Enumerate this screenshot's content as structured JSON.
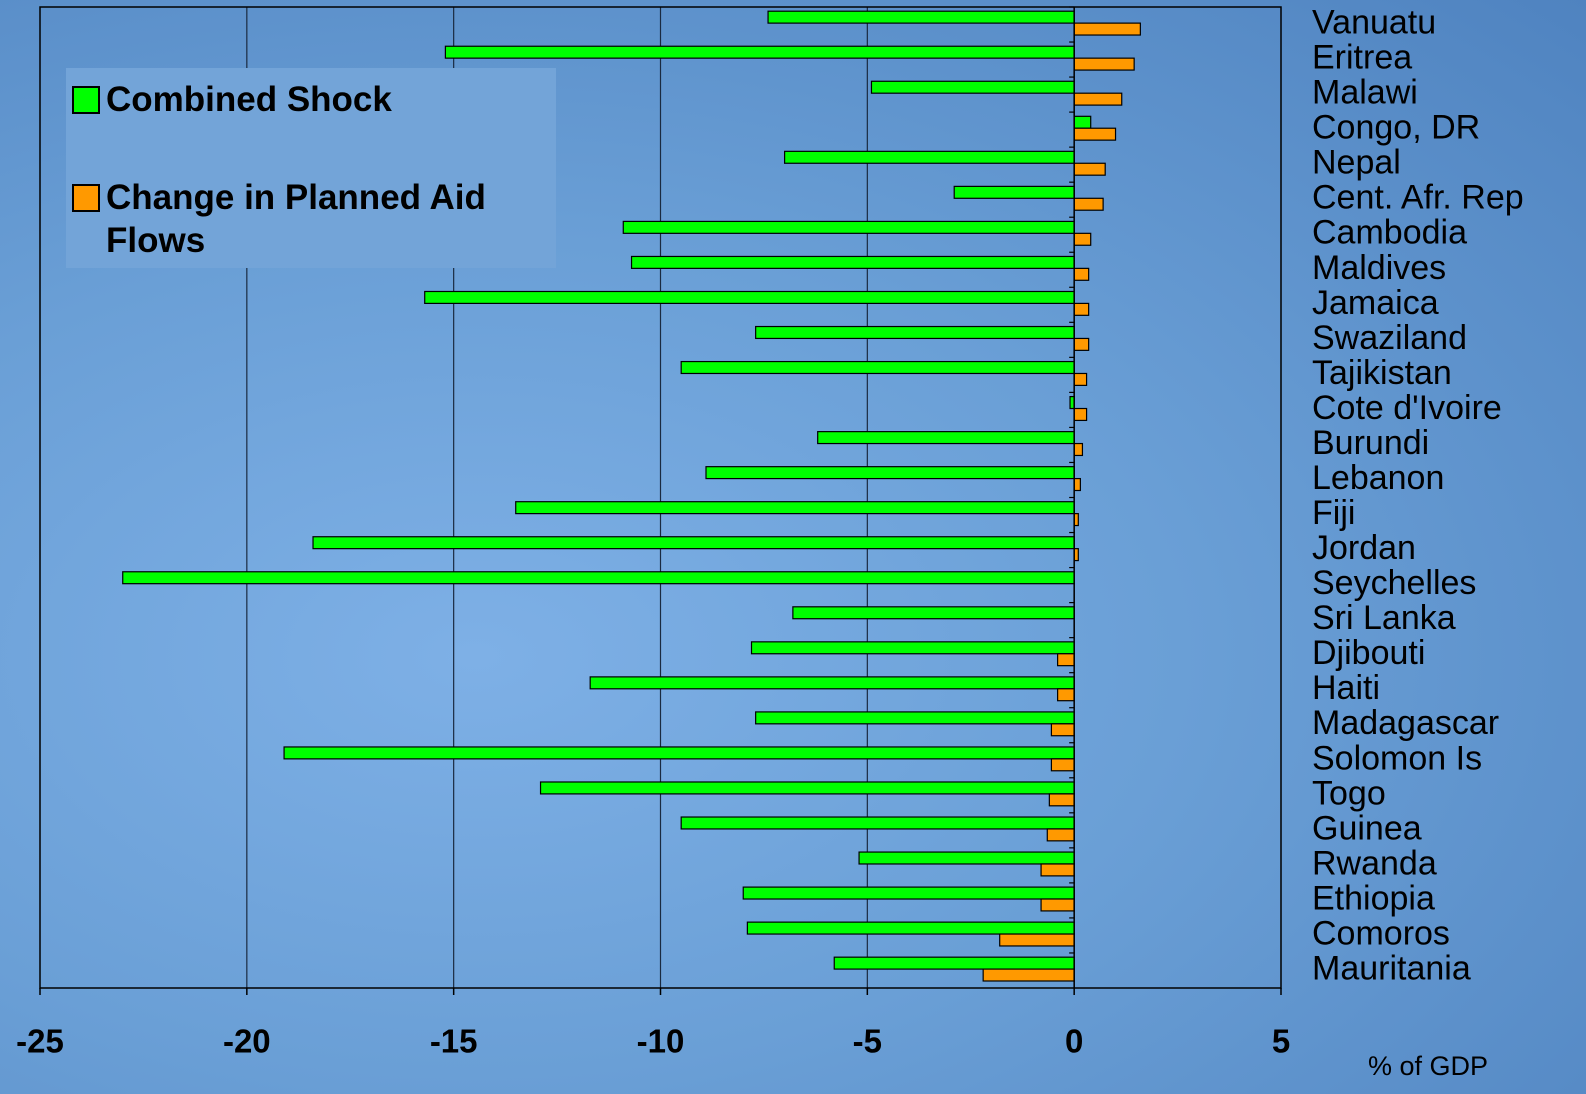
{
  "chart_data": {
    "type": "bar",
    "orientation": "horizontal",
    "categories": [
      "Vanuatu",
      "Eritrea",
      "Malawi",
      "Congo, DR",
      "Nepal",
      "Cent. Afr. Rep",
      "Cambodia",
      "Maldives",
      "Jamaica",
      "Swaziland",
      "Tajikistan",
      "Cote d'Ivoire",
      "Burundi",
      "Lebanon",
      "Fiji",
      "Jordan",
      "Seychelles",
      "Sri Lanka",
      "Djibouti",
      "Haiti",
      "Madagascar",
      "Solomon Is",
      "Togo",
      "Guinea",
      "Rwanda",
      "Ethiopia",
      "Comoros",
      "Mauritania"
    ],
    "series": [
      {
        "name": "Combined Shock",
        "color": "#00ff00",
        "values": [
          -7.4,
          -15.2,
          -4.9,
          0.4,
          -7.0,
          -2.9,
          -10.9,
          -10.7,
          -15.7,
          -7.7,
          -9.5,
          -0.1,
          -6.2,
          -8.9,
          -13.5,
          -18.4,
          -23.0,
          -6.8,
          -7.8,
          -11.7,
          -7.7,
          -19.1,
          -12.9,
          -9.5,
          -5.2,
          -8.0,
          -7.9,
          -5.8
        ]
      },
      {
        "name": "Change in Planned Aid Flows",
        "color": "#ff9900",
        "values": [
          1.6,
          1.45,
          1.15,
          1.0,
          0.75,
          0.7,
          0.4,
          0.35,
          0.35,
          0.35,
          0.3,
          0.3,
          0.2,
          0.15,
          0.1,
          0.1,
          0,
          0,
          -0.4,
          -0.4,
          -0.55,
          -0.55,
          -0.6,
          -0.65,
          -0.8,
          -0.8,
          -1.8,
          -2.2
        ]
      }
    ],
    "xlim": [
      -25,
      5
    ],
    "xticks": [
      -25,
      -20,
      -15,
      -10,
      -5,
      0,
      5
    ],
    "xlabel": "% of GDP",
    "grid": true
  }
}
